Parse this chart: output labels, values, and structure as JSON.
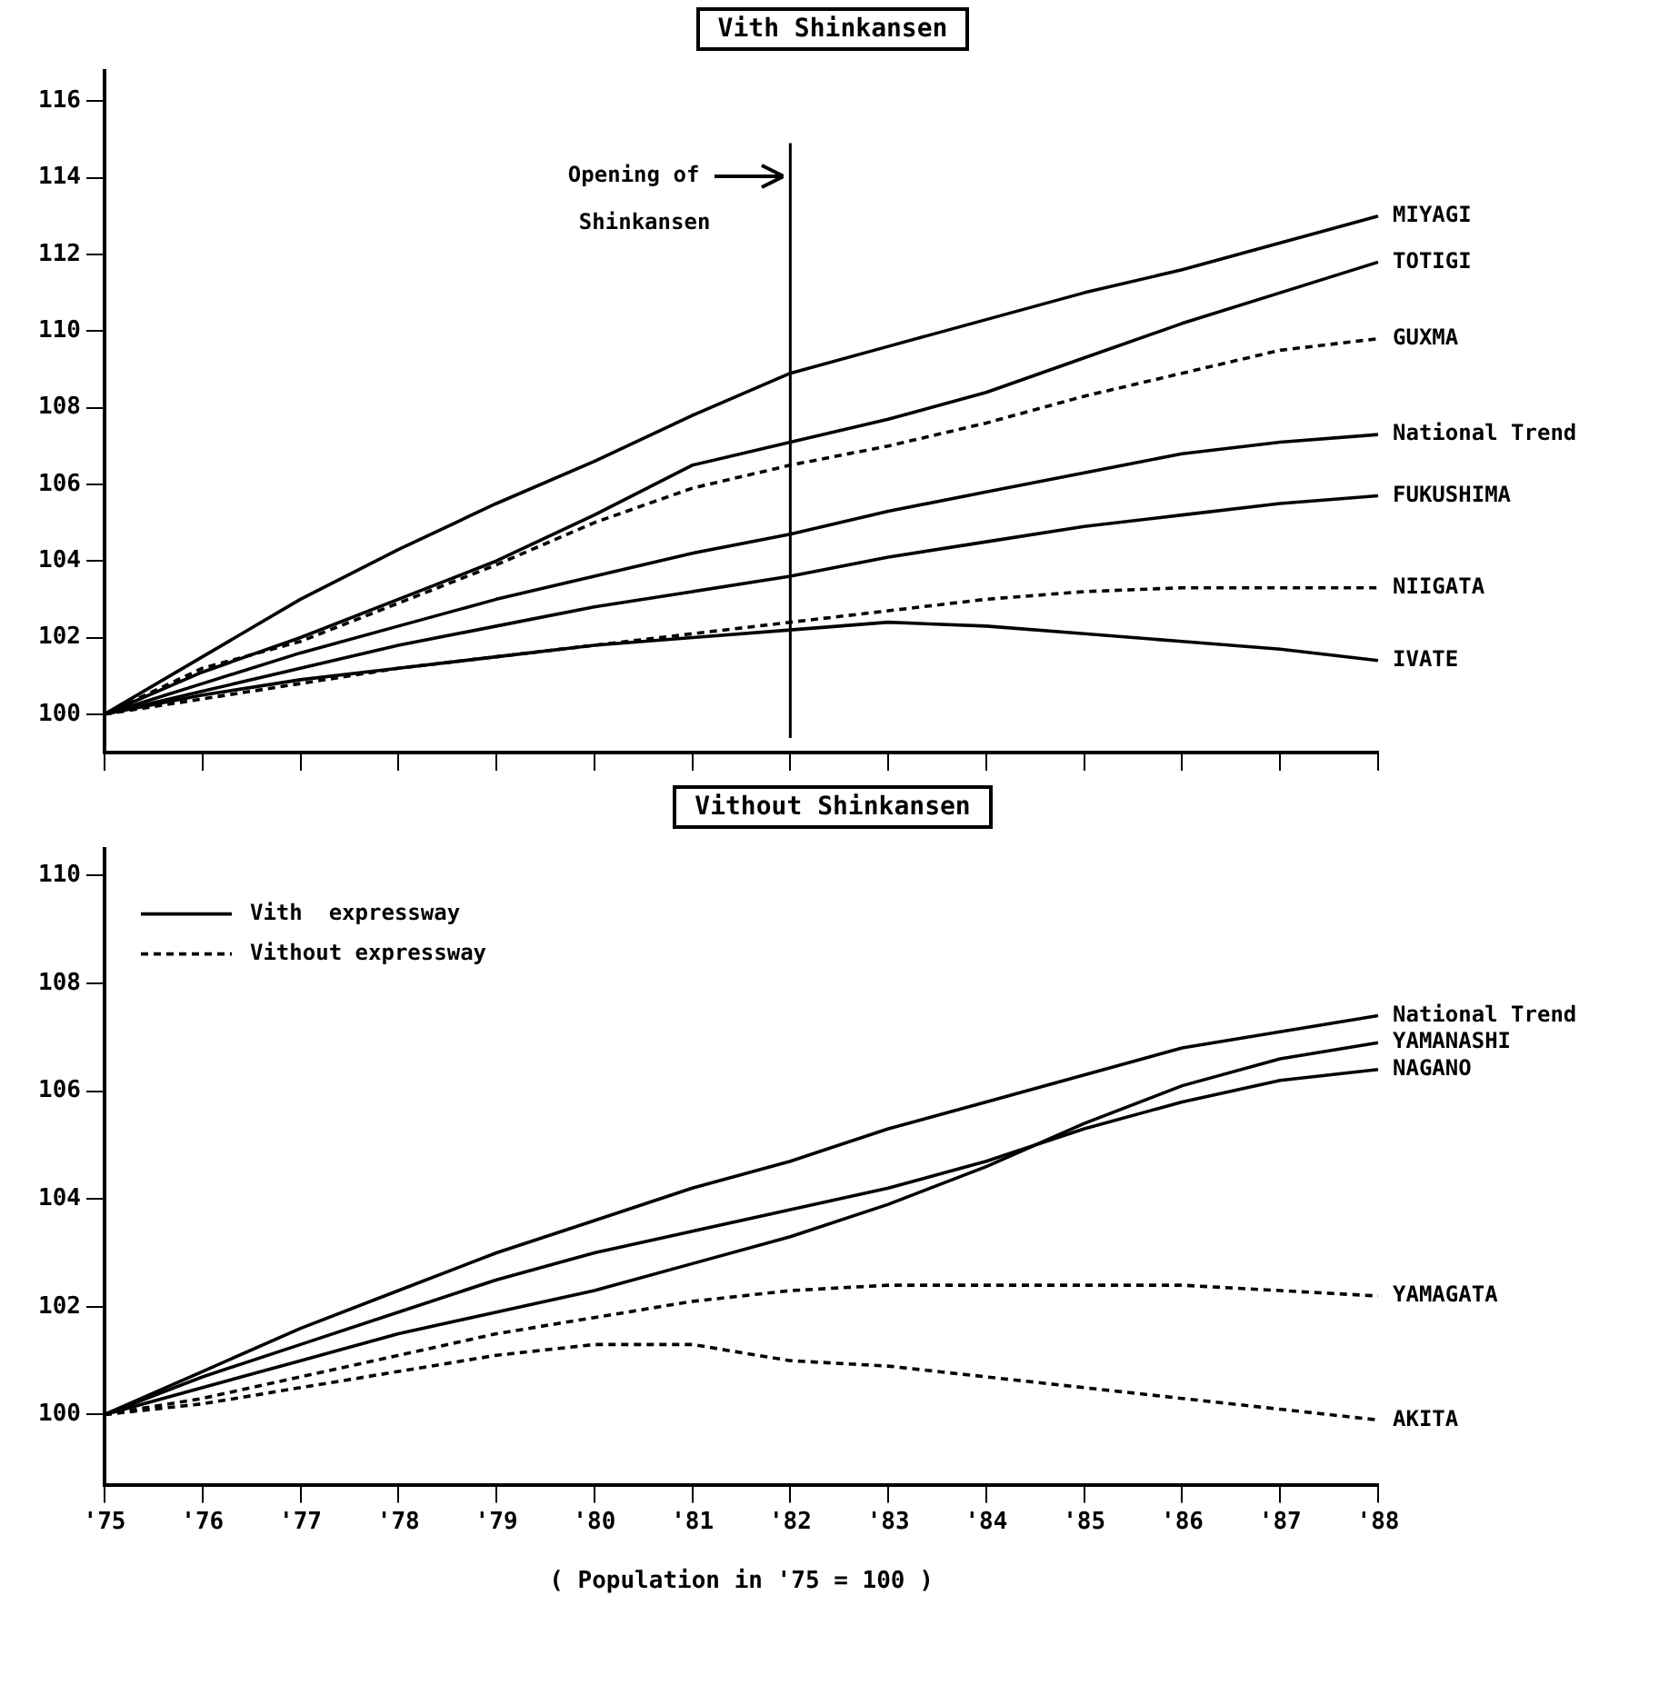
{
  "chart_data": [
    {
      "type": "line",
      "title": "Vith Shinkansen",
      "categories": [
        "'75",
        "'76",
        "'77",
        "'78",
        "'79",
        "'80",
        "'81",
        "'82",
        "'83",
        "'84",
        "'85",
        "'86",
        "'87",
        "'88"
      ],
      "ylim": [
        99,
        116.8
      ],
      "yticks": [
        100,
        102,
        104,
        106,
        108,
        110,
        112,
        114,
        116
      ],
      "grid": false,
      "tick_labels": "y",
      "series": [
        {
          "name": "MIYAGI",
          "color": "#000000",
          "line_style": "solid",
          "values": [
            100,
            101.5,
            103.0,
            104.3,
            105.5,
            106.6,
            107.8,
            108.9,
            109.6,
            110.3,
            111.0,
            111.6,
            112.3,
            113.0
          ]
        },
        {
          "name": "TOTIGI",
          "color": "#000000",
          "line_style": "solid",
          "values": [
            100,
            101.1,
            102.0,
            103.0,
            104.0,
            105.2,
            106.5,
            107.1,
            107.7,
            108.4,
            109.3,
            110.2,
            111.0,
            111.8
          ]
        },
        {
          "name": "GUXMA",
          "color": "#000000",
          "line_style": "dashed",
          "values": [
            100,
            101.2,
            101.9,
            102.9,
            103.9,
            105.0,
            105.9,
            106.5,
            107.0,
            107.6,
            108.3,
            108.9,
            109.5,
            109.8
          ]
        },
        {
          "name": "National Trend",
          "color": "#000000",
          "line_style": "solid",
          "values": [
            100,
            100.8,
            101.6,
            102.3,
            103.0,
            103.6,
            104.2,
            104.7,
            105.3,
            105.8,
            106.3,
            106.8,
            107.1,
            107.3
          ]
        },
        {
          "name": "FUKUSHIMA",
          "color": "#000000",
          "line_style": "solid",
          "values": [
            100,
            100.6,
            101.2,
            101.8,
            102.3,
            102.8,
            103.2,
            103.6,
            104.1,
            104.5,
            104.9,
            105.2,
            105.5,
            105.7
          ]
        },
        {
          "name": "NIIGATA",
          "color": "#000000",
          "line_style": "dashed",
          "values": [
            100,
            100.4,
            100.8,
            101.2,
            101.5,
            101.8,
            102.1,
            102.4,
            102.7,
            103.0,
            103.2,
            103.3,
            103.3,
            103.3
          ]
        },
        {
          "name": "IVATE",
          "color": "#000000",
          "line_style": "solid",
          "values": [
            100,
            100.5,
            100.9,
            101.2,
            101.5,
            101.8,
            102.0,
            102.2,
            102.4,
            102.3,
            102.1,
            101.9,
            101.7,
            101.4
          ]
        }
      ],
      "ref_lines": [
        {
          "axis": "x",
          "value": "'82",
          "label": "Opening of\nShinkansen",
          "color": "#000000"
        }
      ]
    },
    {
      "type": "line",
      "title": "Vithout Shinkansen",
      "xlabel": "( Population in '75 = 100 )",
      "categories": [
        "'75",
        "'76",
        "'77",
        "'78",
        "'79",
        "'80",
        "'81",
        "'82",
        "'83",
        "'84",
        "'85",
        "'86",
        "'87",
        "'88"
      ],
      "ylim": [
        98.7,
        110.5
      ],
      "yticks": [
        100,
        102,
        104,
        106,
        108,
        110
      ],
      "grid": false,
      "annotations": [
        "Vith  expressway",
        "Vithout expressway"
      ],
      "series": [
        {
          "name": "National Trend",
          "color": "#000000",
          "line_style": "solid",
          "values": [
            100,
            100.8,
            101.6,
            102.3,
            103.0,
            103.6,
            104.2,
            104.7,
            105.3,
            105.8,
            106.3,
            106.8,
            107.1,
            107.4
          ]
        },
        {
          "name": "YAMANASHI",
          "color": "#000000",
          "line_style": "solid",
          "values": [
            100,
            100.5,
            101.0,
            101.5,
            101.9,
            102.3,
            102.8,
            103.3,
            103.9,
            104.6,
            105.4,
            106.1,
            106.6,
            106.9
          ]
        },
        {
          "name": "NAGANO",
          "color": "#000000",
          "line_style": "solid",
          "values": [
            100,
            100.7,
            101.3,
            101.9,
            102.5,
            103.0,
            103.4,
            103.8,
            104.2,
            104.7,
            105.3,
            105.8,
            106.2,
            106.4
          ]
        },
        {
          "name": "YAMAGATA",
          "color": "#000000",
          "line_style": "dashed",
          "values": [
            100,
            100.3,
            100.7,
            101.1,
            101.5,
            101.8,
            102.1,
            102.3,
            102.4,
            102.4,
            102.4,
            102.4,
            102.3,
            102.2
          ]
        },
        {
          "name": "AKITA",
          "color": "#000000",
          "line_style": "dashed",
          "values": [
            100,
            100.2,
            100.5,
            100.8,
            101.1,
            101.3,
            101.3,
            101.0,
            100.9,
            100.7,
            100.5,
            100.3,
            100.1,
            99.9
          ]
        }
      ]
    }
  ]
}
